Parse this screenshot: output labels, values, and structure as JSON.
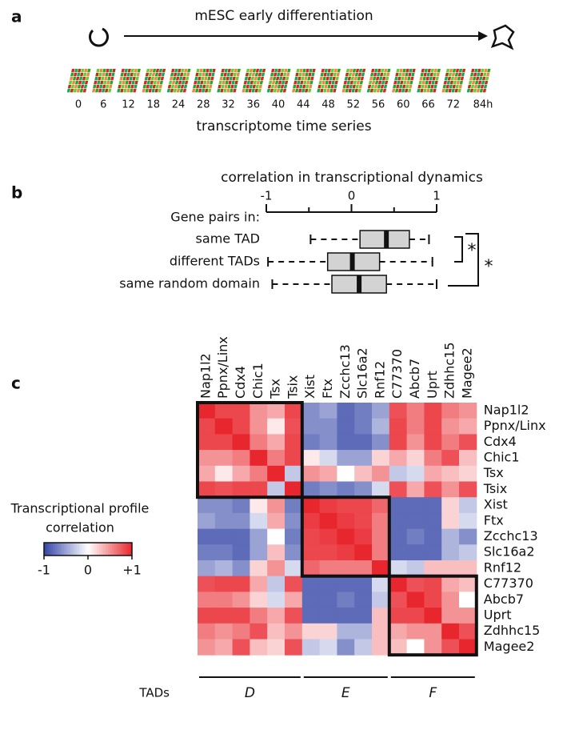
{
  "panel_a": {
    "label": "a",
    "title": "mESC early differentiation",
    "timepoints": [
      "0",
      "6",
      "12",
      "18",
      "24",
      "28",
      "32",
      "36",
      "40",
      "44",
      "48",
      "52",
      "56",
      "60",
      "66",
      "72",
      "84h"
    ],
    "caption": "transcriptome time series"
  },
  "panel_b": {
    "label": "b",
    "chart_data": {
      "type": "boxplot",
      "title": "correlation in transcriptional dynamics",
      "group_header": "Gene pairs in:",
      "categories": [
        "same TAD",
        "different TADs",
        "same  random domain"
      ],
      "boxes": [
        {
          "min": -0.48,
          "q1": 0.1,
          "median": 0.41,
          "q3": 0.68,
          "max": 0.91
        },
        {
          "min": -0.98,
          "q1": -0.28,
          "median": 0.01,
          "q3": 0.33,
          "max": 0.95
        },
        {
          "min": -0.93,
          "q1": -0.23,
          "median": 0.09,
          "q3": 0.41,
          "max": 1.0
        }
      ],
      "xlim": [
        -1,
        1
      ],
      "xticks": [
        -1,
        0,
        1
      ],
      "xminor": [
        -0.5,
        0.5
      ],
      "significance": [
        "*",
        "*"
      ]
    }
  },
  "panel_c": {
    "label": "c",
    "chart_data": {
      "type": "heatmap",
      "genes": [
        "Nap1l2",
        "Ppnx/Linx",
        "Cdx4",
        "Chic1",
        "Tsx",
        "Tsix",
        "Xist",
        "Ftx",
        "Zcchc13",
        "Slc16a2",
        "Rnf12",
        "C77370",
        "Abcb7",
        "Uprt",
        "Zdhhc15",
        "Magee2"
      ],
      "values": [
        [
          1,
          0.85,
          0.85,
          0.5,
          0.4,
          0.85,
          -0.6,
          -0.5,
          -0.8,
          -0.7,
          -0.5,
          0.8,
          0.6,
          0.85,
          0.6,
          0.5
        ],
        [
          0.85,
          1,
          0.85,
          0.5,
          0.1,
          0.8,
          -0.6,
          -0.6,
          -0.8,
          -0.7,
          -0.4,
          0.85,
          0.6,
          0.85,
          0.5,
          0.4
        ],
        [
          0.85,
          0.85,
          1,
          0.6,
          0.4,
          0.85,
          -0.7,
          -0.6,
          -0.8,
          -0.8,
          -0.6,
          0.85,
          0.5,
          0.85,
          0.6,
          0.8
        ],
        [
          0.5,
          0.5,
          0.6,
          1,
          0.6,
          0.85,
          0.1,
          -0.2,
          -0.5,
          -0.5,
          0.2,
          0.4,
          0.2,
          0.6,
          0.8,
          0.3
        ],
        [
          0.4,
          0.1,
          0.4,
          0.6,
          1,
          -0.3,
          0.5,
          0.4,
          0,
          0.3,
          0.5,
          -0.3,
          -0.2,
          0.4,
          0.3,
          0.2
        ],
        [
          0.85,
          0.8,
          0.85,
          0.85,
          -0.3,
          1,
          -0.7,
          -0.6,
          -0.7,
          -0.6,
          -0.2,
          0.8,
          0.4,
          0.8,
          0.5,
          0.8
        ],
        [
          -0.6,
          -0.6,
          -0.7,
          0.1,
          0.5,
          -0.7,
          1,
          0.9,
          0.85,
          0.85,
          0.7,
          -0.8,
          -0.8,
          -0.8,
          0.2,
          -0.3
        ],
        [
          -0.5,
          -0.6,
          -0.6,
          -0.2,
          0.4,
          -0.6,
          0.9,
          1,
          0.9,
          0.85,
          0.6,
          -0.8,
          -0.8,
          -0.8,
          0.2,
          -0.2
        ],
        [
          -0.8,
          -0.8,
          -0.8,
          -0.5,
          0,
          -0.7,
          0.85,
          0.9,
          1,
          0.9,
          0.6,
          -0.8,
          -0.7,
          -0.8,
          -0.4,
          -0.6
        ],
        [
          -0.7,
          -0.7,
          -0.8,
          -0.5,
          0.3,
          -0.6,
          0.85,
          0.85,
          0.9,
          1,
          0.6,
          -0.8,
          -0.8,
          -0.8,
          -0.4,
          -0.3
        ],
        [
          -0.5,
          -0.4,
          -0.6,
          0.2,
          0.5,
          -0.2,
          0.7,
          0.6,
          0.6,
          0.6,
          1,
          -0.2,
          -0.3,
          0.3,
          0.3,
          0.3
        ],
        [
          0.8,
          0.85,
          0.85,
          0.4,
          -0.3,
          0.8,
          -0.8,
          -0.8,
          -0.8,
          -0.8,
          -0.2,
          1,
          0.8,
          0.85,
          0.4,
          0.3
        ],
        [
          0.6,
          0.6,
          0.5,
          0.2,
          -0.2,
          0.4,
          -0.8,
          -0.8,
          -0.7,
          -0.8,
          -0.3,
          0.8,
          1,
          0.85,
          0.5,
          0
        ],
        [
          0.85,
          0.85,
          0.85,
          0.6,
          0.4,
          0.8,
          -0.8,
          -0.8,
          -0.8,
          -0.8,
          0.3,
          0.85,
          0.85,
          1,
          0.5,
          0.5
        ],
        [
          0.6,
          0.5,
          0.6,
          0.8,
          0.3,
          0.5,
          0.2,
          0.2,
          -0.4,
          -0.4,
          0.3,
          0.4,
          0.5,
          0.5,
          1,
          0.8
        ],
        [
          0.5,
          0.4,
          0.8,
          0.3,
          0.2,
          0.8,
          -0.3,
          -0.2,
          -0.6,
          -0.3,
          0.3,
          0.3,
          0,
          0.5,
          0.8,
          1
        ]
      ],
      "zlim": [
        -1,
        1
      ],
      "colors": {
        "low": "#3446a8",
        "mid": "#ffffff",
        "high": "#e8262d"
      },
      "colorbar_title": [
        "Transcriptional profile",
        "correlation"
      ],
      "colorbar_ticks": [
        -1,
        0,
        {
          "value": 1,
          "label": "+1"
        }
      ],
      "tad_axis_label": "TADs",
      "tads": [
        {
          "label": "D",
          "genes": 6
        },
        {
          "label": "E",
          "genes": 5
        },
        {
          "label": "F",
          "genes": 5
        }
      ]
    }
  }
}
